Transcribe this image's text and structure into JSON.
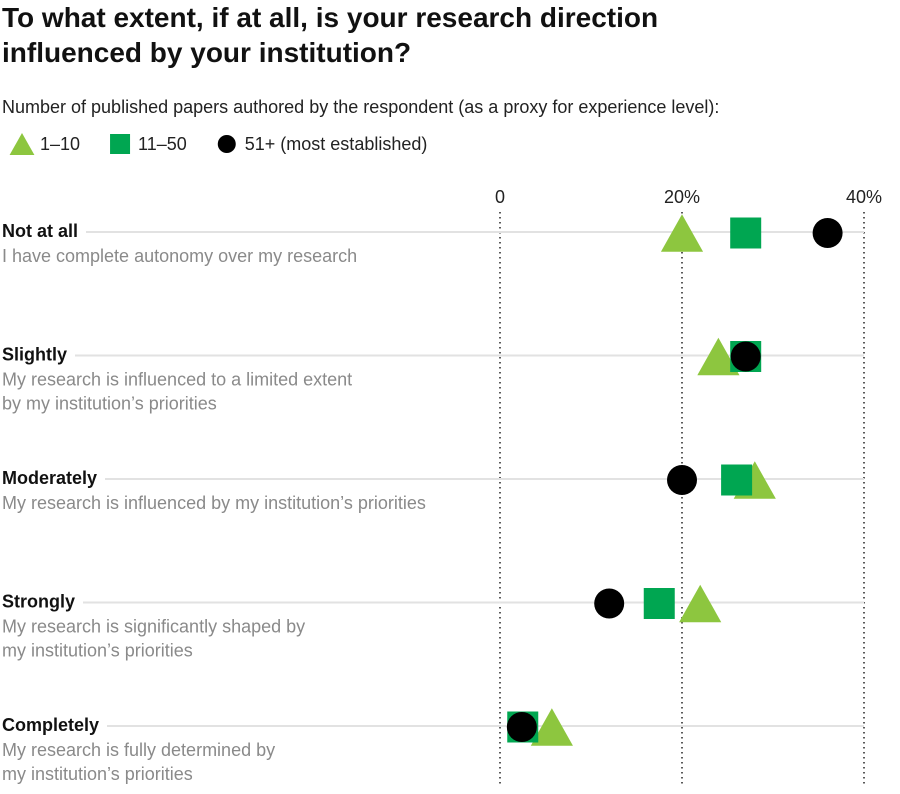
{
  "chart_data": {
    "type": "dot",
    "title": "To what extent, if at all, is your research direction influenced by your institution?",
    "subtitle": "Number of published papers authored by the respondent (as a proxy for experience level):",
    "categories": [
      "Not at all",
      "Slightly",
      "Moderately",
      "Strongly",
      "Completely"
    ],
    "descriptions": [
      [
        "I have complete autonomy over my research"
      ],
      [
        "My research is influenced to a limited extent",
        "by my institution’s priorities"
      ],
      [
        "My research is influenced by my institution’s priorities"
      ],
      [
        "My research is significantly shaped by",
        "my institution’s priorities"
      ],
      [
        "My research is fully determined by",
        "my institution’s priorities"
      ]
    ],
    "series": [
      {
        "name": "1–10",
        "color": "#8dc63f",
        "marker": "triangle",
        "values": [
          20,
          24,
          28,
          22,
          5.7
        ]
      },
      {
        "name": "11–50",
        "color": "#00a651",
        "marker": "square",
        "values": [
          27,
          27,
          26,
          17.5,
          2.5
        ]
      },
      {
        "name": "51+ (most established)",
        "color": "#000000",
        "marker": "circle",
        "values": [
          36,
          27,
          20,
          12,
          2.4
        ]
      }
    ],
    "xlim": [
      0,
      40
    ],
    "xticks": [
      0,
      {
        "value": 20,
        "label": "20%"
      },
      {
        "value": 40,
        "label": "40%"
      }
    ],
    "grid": true
  }
}
